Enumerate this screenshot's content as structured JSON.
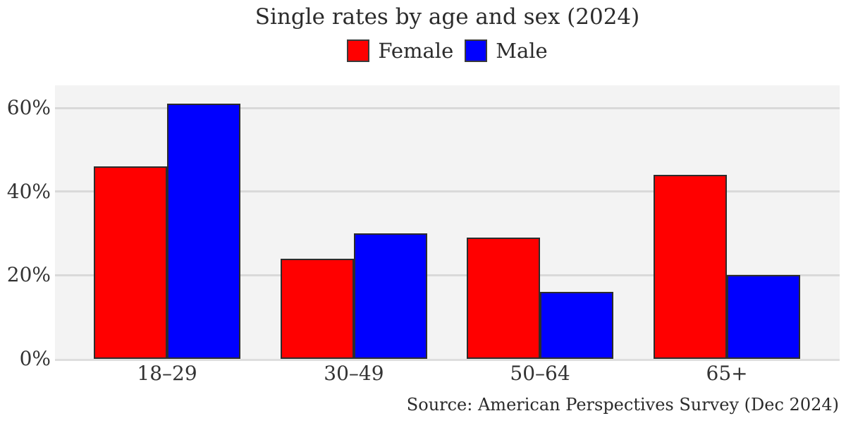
{
  "title": "Single rates by age and sex (2024)",
  "source": "Source: American Perspectives Survey (Dec 2024)",
  "legend": {
    "items": [
      {
        "label": "Female",
        "color": "#ff0000"
      },
      {
        "label": "Male",
        "color": "#0000ff"
      }
    ]
  },
  "y_axis": {
    "tick_labels": [
      "0%",
      "20%",
      "40%",
      "60%"
    ],
    "tick_values": [
      0,
      20,
      40,
      60
    ]
  },
  "chart_data": {
    "type": "bar",
    "title": "Single rates by age and sex (2024)",
    "categories": [
      "18–29",
      "30–49",
      "50–64",
      "65+"
    ],
    "series": [
      {
        "name": "Female",
        "color": "#ff0000",
        "values": [
          46,
          24,
          29,
          44
        ]
      },
      {
        "name": "Male",
        "color": "#0000ff",
        "values": [
          61,
          30,
          16,
          20
        ]
      }
    ],
    "xlabel": "",
    "ylabel": "",
    "ylim": [
      0,
      65.4
    ],
    "yticks": [
      0,
      20,
      40,
      60
    ],
    "ytick_format": "percent",
    "grid": true,
    "legend_position": "top-center",
    "plot_background": "#f3f3f3",
    "gridline_color": "#d9d9d9",
    "bar_border_color": "#2c2c2c",
    "source": "Source: American Perspectives Survey (Dec 2024)"
  }
}
